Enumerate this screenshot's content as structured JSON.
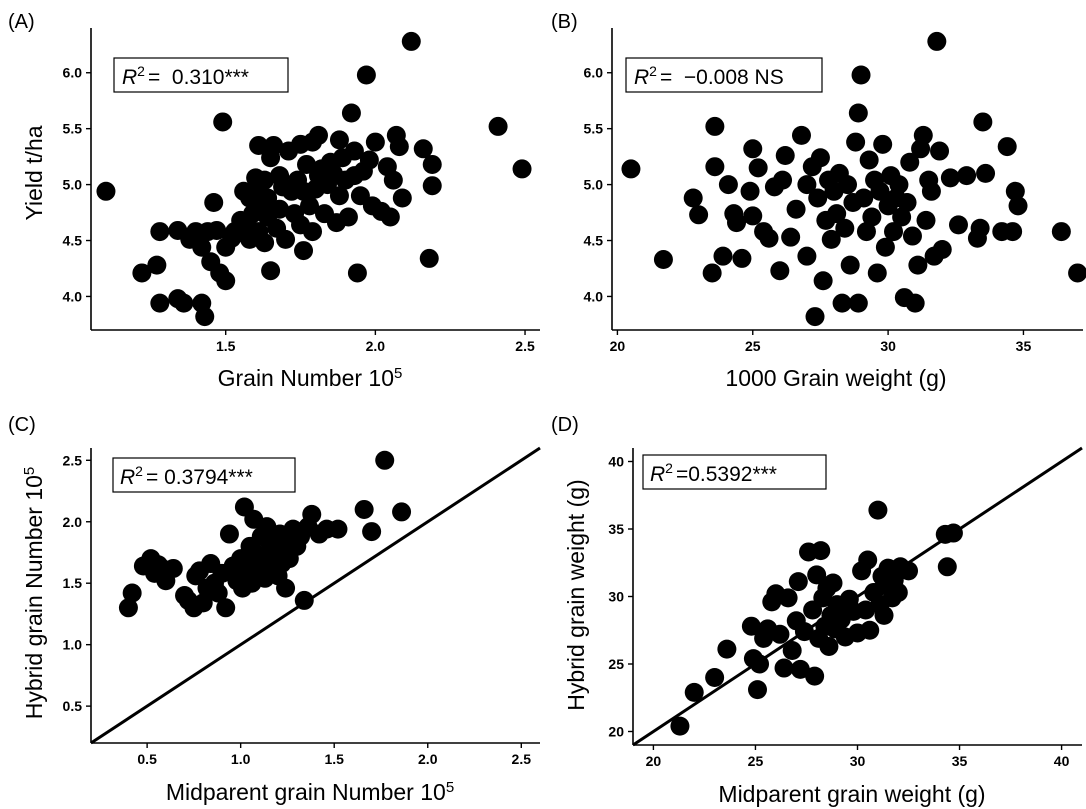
{
  "chart_data": [
    {
      "type": "scatter",
      "panel_label": "(A)",
      "xlabel": "Grain Number 10",
      "xlabel_sup": "5",
      "ylabel": "Yield t/ha",
      "xlim": [
        1.05,
        2.55
      ],
      "ylim": [
        3.7,
        6.4
      ],
      "xticks": [
        1.5,
        2.0,
        2.5
      ],
      "xtick_labels": [
        "1.5",
        "2.0",
        "2.5"
      ],
      "yticks": [
        4.0,
        4.5,
        5.0,
        5.5,
        6.0
      ],
      "ytick_labels": [
        "4.0",
        "4.5",
        "5.0",
        "5.5",
        "6.0"
      ],
      "annotation": {
        "r2_label": "R",
        "r2_sup": "2",
        "r2_value": "=  0.310***"
      },
      "points": [
        [
          1.1,
          4.94
        ],
        [
          1.22,
          4.21
        ],
        [
          1.27,
          4.28
        ],
        [
          1.28,
          4.58
        ],
        [
          1.28,
          3.94
        ],
        [
          1.34,
          3.98
        ],
        [
          1.34,
          4.59
        ],
        [
          1.36,
          3.94
        ],
        [
          1.38,
          4.51
        ],
        [
          1.4,
          4.58
        ],
        [
          1.42,
          3.94
        ],
        [
          1.42,
          4.44
        ],
        [
          1.43,
          3.82
        ],
        [
          1.44,
          4.58
        ],
        [
          1.45,
          4.31
        ],
        [
          1.46,
          4.84
        ],
        [
          1.47,
          4.59
        ],
        [
          1.48,
          4.21
        ],
        [
          1.49,
          5.56
        ],
        [
          1.5,
          4.14
        ],
        [
          1.5,
          4.44
        ],
        [
          1.52,
          4.52
        ],
        [
          1.53,
          4.58
        ],
        [
          1.55,
          4.68
        ],
        [
          1.56,
          4.94
        ],
        [
          1.57,
          4.65
        ],
        [
          1.58,
          4.88
        ],
        [
          1.58,
          4.51
        ],
        [
          1.59,
          4.74
        ],
        [
          1.6,
          5.06
        ],
        [
          1.6,
          4.94
        ],
        [
          1.61,
          5.35
        ],
        [
          1.61,
          4.58
        ],
        [
          1.62,
          4.81
        ],
        [
          1.63,
          5.04
        ],
        [
          1.63,
          4.48
        ],
        [
          1.64,
          4.88
        ],
        [
          1.64,
          4.71
        ],
        [
          1.65,
          5.24
        ],
        [
          1.65,
          4.23
        ],
        [
          1.66,
          5.35
        ],
        [
          1.67,
          4.61
        ],
        [
          1.68,
          5.08
        ],
        [
          1.68,
          4.78
        ],
        [
          1.69,
          4.98
        ],
        [
          1.7,
          4.51
        ],
        [
          1.71,
          5.3
        ],
        [
          1.72,
          4.94
        ],
        [
          1.73,
          4.74
        ],
        [
          1.74,
          5.04
        ],
        [
          1.75,
          4.64
        ],
        [
          1.75,
          5.36
        ],
        [
          1.76,
          4.41
        ],
        [
          1.76,
          4.94
        ],
        [
          1.77,
          5.18
        ],
        [
          1.78,
          4.81
        ],
        [
          1.79,
          5.38
        ],
        [
          1.79,
          4.58
        ],
        [
          1.8,
          4.96
        ],
        [
          1.81,
          5.44
        ],
        [
          1.81,
          5.08
        ],
        [
          1.82,
          5.14
        ],
        [
          1.83,
          4.74
        ],
        [
          1.84,
          5.0
        ],
        [
          1.85,
          5.2
        ],
        [
          1.86,
          5.1
        ],
        [
          1.87,
          4.66
        ],
        [
          1.88,
          5.4
        ],
        [
          1.88,
          4.9
        ],
        [
          1.89,
          5.24
        ],
        [
          1.9,
          5.04
        ],
        [
          1.91,
          4.71
        ],
        [
          1.92,
          5.64
        ],
        [
          1.93,
          5.3
        ],
        [
          1.93,
          5.08
        ],
        [
          1.94,
          4.21
        ],
        [
          1.95,
          4.9
        ],
        [
          1.96,
          5.12
        ],
        [
          1.97,
          5.98
        ],
        [
          1.98,
          5.22
        ],
        [
          1.99,
          4.81
        ],
        [
          2.0,
          5.38
        ],
        [
          2.02,
          4.76
        ],
        [
          2.04,
          5.16
        ],
        [
          2.05,
          4.71
        ],
        [
          2.06,
          5.04
        ],
        [
          2.07,
          5.44
        ],
        [
          2.08,
          5.34
        ],
        [
          2.09,
          4.88
        ],
        [
          2.12,
          6.28
        ],
        [
          2.16,
          5.32
        ],
        [
          2.18,
          4.34
        ],
        [
          2.19,
          5.18
        ],
        [
          2.19,
          4.99
        ],
        [
          2.41,
          5.52
        ],
        [
          2.49,
          5.14
        ]
      ]
    },
    {
      "type": "scatter",
      "panel_label": "(B)",
      "xlabel": "1000 Grain weight (g)",
      "xlabel_sup": "",
      "ylabel": "",
      "xlim": [
        19.8,
        37.2
      ],
      "ylim": [
        3.7,
        6.4
      ],
      "xticks": [
        20,
        25,
        30,
        35
      ],
      "xtick_labels": [
        "20",
        "25",
        "30",
        "35"
      ],
      "yticks": [
        4.0,
        4.5,
        5.0,
        5.5,
        6.0
      ],
      "ytick_labels": [
        "4.0",
        "4.5",
        "5.0",
        "5.5",
        "6.0"
      ],
      "annotation": {
        "r2_label": "R",
        "r2_sup": "2",
        "r2_value": "=  −0.008 NS"
      },
      "points": [
        [
          20.5,
          5.14
        ],
        [
          21.7,
          4.33
        ],
        [
          22.8,
          4.88
        ],
        [
          23.0,
          4.73
        ],
        [
          23.5,
          4.21
        ],
        [
          23.6,
          5.16
        ],
        [
          23.6,
          5.52
        ],
        [
          23.9,
          4.36
        ],
        [
          24.1,
          5.0
        ],
        [
          24.3,
          4.74
        ],
        [
          24.4,
          4.66
        ],
        [
          24.6,
          4.34
        ],
        [
          24.9,
          4.94
        ],
        [
          25.0,
          4.72
        ],
        [
          25.0,
          5.32
        ],
        [
          25.2,
          5.15
        ],
        [
          25.4,
          4.58
        ],
        [
          25.6,
          4.52
        ],
        [
          25.8,
          4.98
        ],
        [
          26.0,
          4.23
        ],
        [
          26.1,
          5.04
        ],
        [
          26.2,
          5.26
        ],
        [
          26.4,
          4.53
        ],
        [
          26.6,
          4.78
        ],
        [
          26.8,
          5.44
        ],
        [
          27.0,
          5.0
        ],
        [
          27.0,
          4.36
        ],
        [
          27.2,
          5.16
        ],
        [
          27.3,
          3.82
        ],
        [
          27.4,
          4.88
        ],
        [
          27.5,
          5.24
        ],
        [
          27.6,
          4.14
        ],
        [
          27.7,
          4.68
        ],
        [
          27.8,
          5.04
        ],
        [
          27.9,
          4.51
        ],
        [
          28.0,
          4.94
        ],
        [
          28.1,
          4.74
        ],
        [
          28.2,
          5.1
        ],
        [
          28.3,
          3.94
        ],
        [
          28.4,
          4.61
        ],
        [
          28.5,
          5.0
        ],
        [
          28.6,
          4.28
        ],
        [
          28.7,
          4.84
        ],
        [
          28.8,
          5.38
        ],
        [
          28.9,
          3.94
        ],
        [
          28.9,
          5.64
        ],
        [
          29.0,
          5.98
        ],
        [
          29.1,
          4.88
        ],
        [
          29.2,
          4.58
        ],
        [
          29.3,
          5.22
        ],
        [
          29.4,
          4.71
        ],
        [
          29.5,
          5.04
        ],
        [
          29.6,
          4.21
        ],
        [
          29.7,
          4.94
        ],
        [
          29.8,
          5.36
        ],
        [
          29.9,
          4.44
        ],
        [
          30.0,
          4.81
        ],
        [
          30.1,
          5.08
        ],
        [
          30.2,
          4.58
        ],
        [
          30.3,
          4.88
        ],
        [
          30.4,
          5.0
        ],
        [
          30.5,
          4.71
        ],
        [
          30.6,
          3.99
        ],
        [
          30.7,
          4.84
        ],
        [
          30.8,
          5.2
        ],
        [
          30.9,
          4.54
        ],
        [
          31.0,
          3.94
        ],
        [
          31.1,
          4.28
        ],
        [
          31.2,
          5.32
        ],
        [
          31.3,
          5.44
        ],
        [
          31.4,
          4.68
        ],
        [
          31.5,
          5.04
        ],
        [
          31.6,
          4.94
        ],
        [
          31.7,
          4.36
        ],
        [
          31.8,
          6.28
        ],
        [
          31.9,
          5.3
        ],
        [
          32.0,
          4.42
        ],
        [
          32.3,
          5.06
        ],
        [
          32.6,
          4.64
        ],
        [
          32.9,
          5.08
        ],
        [
          33.3,
          4.52
        ],
        [
          33.4,
          4.61
        ],
        [
          33.5,
          5.56
        ],
        [
          33.6,
          5.1
        ],
        [
          34.2,
          4.58
        ],
        [
          34.4,
          5.34
        ],
        [
          34.6,
          4.58
        ],
        [
          34.7,
          4.94
        ],
        [
          34.8,
          4.81
        ],
        [
          36.4,
          4.58
        ],
        [
          37.0,
          4.21
        ]
      ]
    },
    {
      "type": "scatter",
      "panel_label": "(C)",
      "xlabel": "Midparent grain Number 10",
      "xlabel_sup": "5",
      "ylabel": "Hybrid grain Number 10",
      "ylabel_sup": "5",
      "xlim": [
        0.2,
        2.6
      ],
      "ylim": [
        0.2,
        2.6
      ],
      "xticks": [
        0.5,
        1.0,
        1.5,
        2.0,
        2.5
      ],
      "xtick_labels": [
        "0.5",
        "1.0",
        "1.5",
        "2.0",
        "2.5"
      ],
      "yticks": [
        0.5,
        1.0,
        1.5,
        2.0,
        2.5
      ],
      "ytick_labels": [
        "0.5",
        "1.0",
        "1.5",
        "2.0",
        "2.5"
      ],
      "annotation": {
        "r2_label": "R",
        "r2_sup": "2",
        "r2_value": "= 0.3794***"
      },
      "reference_line": [
        [
          0.2,
          0.2
        ],
        [
          2.6,
          2.6
        ]
      ],
      "points": [
        [
          0.4,
          1.3
        ],
        [
          0.42,
          1.42
        ],
        [
          0.48,
          1.64
        ],
        [
          0.52,
          1.7
        ],
        [
          0.54,
          1.58
        ],
        [
          0.56,
          1.65
        ],
        [
          0.58,
          1.62
        ],
        [
          0.6,
          1.52
        ],
        [
          0.64,
          1.62
        ],
        [
          0.7,
          1.4
        ],
        [
          0.72,
          1.36
        ],
        [
          0.75,
          1.3
        ],
        [
          0.76,
          1.56
        ],
        [
          0.78,
          1.6
        ],
        [
          0.8,
          1.34
        ],
        [
          0.82,
          1.46
        ],
        [
          0.84,
          1.66
        ],
        [
          0.86,
          1.5
        ],
        [
          0.88,
          1.42
        ],
        [
          0.9,
          1.58
        ],
        [
          0.92,
          1.3
        ],
        [
          0.94,
          1.9
        ],
        [
          0.96,
          1.64
        ],
        [
          0.98,
          1.52
        ],
        [
          1.0,
          1.7
        ],
        [
          1.01,
          1.46
        ],
        [
          1.02,
          2.12
        ],
        [
          1.03,
          1.6
        ],
        [
          1.04,
          1.66
        ],
        [
          1.05,
          1.8
        ],
        [
          1.06,
          1.5
        ],
        [
          1.07,
          2.02
        ],
        [
          1.08,
          1.74
        ],
        [
          1.09,
          1.58
        ],
        [
          1.1,
          1.64
        ],
        [
          1.11,
          1.88
        ],
        [
          1.12,
          1.7
        ],
        [
          1.13,
          1.54
        ],
        [
          1.14,
          1.96
        ],
        [
          1.15,
          1.66
        ],
        [
          1.16,
          1.8
        ],
        [
          1.17,
          1.6
        ],
        [
          1.18,
          1.72
        ],
        [
          1.19,
          1.84
        ],
        [
          1.2,
          1.56
        ],
        [
          1.21,
          1.9
        ],
        [
          1.22,
          1.66
        ],
        [
          1.23,
          1.76
        ],
        [
          1.24,
          1.46
        ],
        [
          1.25,
          1.86
        ],
        [
          1.26,
          1.7
        ],
        [
          1.28,
          1.94
        ],
        [
          1.3,
          1.8
        ],
        [
          1.32,
          1.88
        ],
        [
          1.34,
          1.36
        ],
        [
          1.36,
          1.96
        ],
        [
          1.38,
          2.06
        ],
        [
          1.42,
          1.9
        ],
        [
          1.46,
          1.94
        ],
        [
          1.52,
          1.94
        ],
        [
          1.66,
          2.1
        ],
        [
          1.7,
          1.92
        ],
        [
          1.77,
          2.5
        ],
        [
          1.86,
          2.08
        ]
      ]
    },
    {
      "type": "scatter",
      "panel_label": "(D)",
      "xlabel": "Midparent grain weight (g)",
      "xlabel_sup": "",
      "ylabel": "Hybrid grain weight (g)",
      "ylabel_sup": "",
      "xlim": [
        19.0,
        41.0
      ],
      "ylim": [
        19.0,
        41.0
      ],
      "xticks": [
        20,
        25,
        30,
        35,
        40
      ],
      "xtick_labels": [
        "20",
        "25",
        "30",
        "35",
        "40"
      ],
      "yticks": [
        20,
        25,
        30,
        35,
        40
      ],
      "ytick_labels": [
        "20",
        "25",
        "30",
        "35",
        "40"
      ],
      "annotation": {
        "r2_label": "R",
        "r2_sup": "2",
        "r2_value": "=0.5392***"
      },
      "reference_line": [
        [
          19.0,
          19.0
        ],
        [
          41.0,
          41.0
        ]
      ],
      "points": [
        [
          21.3,
          20.4
        ],
        [
          22.0,
          22.9
        ],
        [
          23.0,
          24.0
        ],
        [
          23.6,
          26.1
        ],
        [
          24.8,
          27.8
        ],
        [
          24.9,
          25.4
        ],
        [
          25.1,
          23.1
        ],
        [
          25.2,
          25.0
        ],
        [
          25.4,
          26.9
        ],
        [
          25.6,
          27.6
        ],
        [
          25.8,
          29.6
        ],
        [
          26.0,
          30.2
        ],
        [
          26.2,
          27.2
        ],
        [
          26.4,
          24.7
        ],
        [
          26.6,
          29.9
        ],
        [
          26.8,
          26.0
        ],
        [
          27.0,
          28.2
        ],
        [
          27.1,
          31.1
        ],
        [
          27.2,
          24.6
        ],
        [
          27.4,
          27.4
        ],
        [
          27.6,
          33.3
        ],
        [
          27.8,
          29.0
        ],
        [
          27.9,
          24.1
        ],
        [
          28.0,
          31.6
        ],
        [
          28.1,
          26.9
        ],
        [
          28.2,
          33.4
        ],
        [
          28.3,
          29.9
        ],
        [
          28.4,
          27.8
        ],
        [
          28.5,
          30.6
        ],
        [
          28.6,
          26.3
        ],
        [
          28.7,
          28.6
        ],
        [
          28.8,
          31.0
        ],
        [
          28.9,
          27.6
        ],
        [
          29.0,
          29.4
        ],
        [
          29.2,
          28.3
        ],
        [
          29.4,
          27.0
        ],
        [
          29.6,
          29.8
        ],
        [
          29.8,
          28.9
        ],
        [
          30.0,
          27.3
        ],
        [
          30.2,
          31.9
        ],
        [
          30.4,
          29.0
        ],
        [
          30.5,
          32.7
        ],
        [
          30.6,
          27.5
        ],
        [
          30.8,
          30.3
        ],
        [
          31.0,
          36.4
        ],
        [
          31.1,
          29.4
        ],
        [
          31.2,
          31.5
        ],
        [
          31.3,
          28.6
        ],
        [
          31.4,
          30.8
        ],
        [
          31.5,
          32.1
        ],
        [
          31.7,
          29.9
        ],
        [
          31.8,
          31.2
        ],
        [
          32.0,
          30.3
        ],
        [
          32.1,
          32.2
        ],
        [
          32.5,
          31.9
        ],
        [
          34.3,
          34.6
        ],
        [
          34.4,
          32.2
        ],
        [
          34.7,
          34.7
        ]
      ]
    }
  ]
}
